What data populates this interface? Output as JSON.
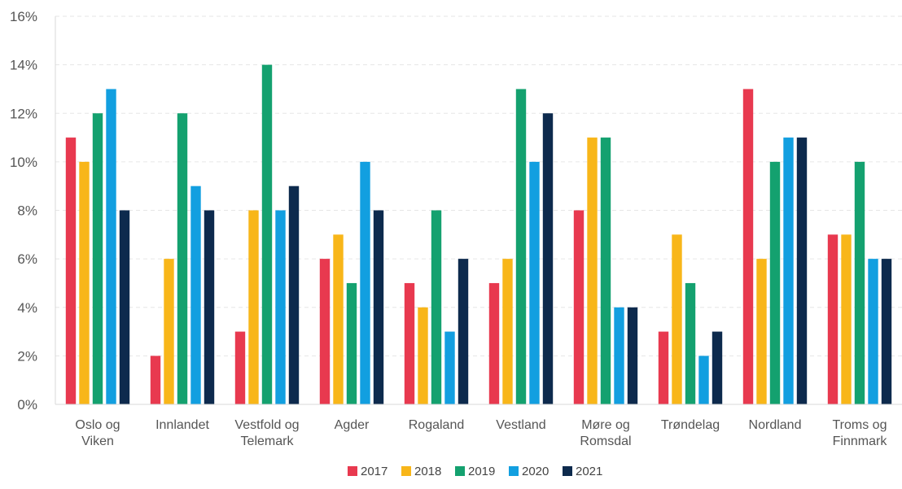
{
  "chart_data": {
    "type": "bar",
    "categories": [
      [
        "Oslo og",
        "Viken"
      ],
      [
        "Innlandet"
      ],
      [
        "Vestfold og",
        "Telemark"
      ],
      [
        "Agder"
      ],
      [
        "Rogaland"
      ],
      [
        "Vestland"
      ],
      [
        "Møre og",
        "Romsdal"
      ],
      [
        "Trøndelag"
      ],
      [
        "Nordland"
      ],
      [
        "Troms og",
        "Finnmark"
      ]
    ],
    "series": [
      {
        "name": "2017",
        "color": "#e8394f",
        "values": [
          11,
          2,
          3,
          6,
          5,
          5,
          8,
          3,
          13,
          7
        ]
      },
      {
        "name": "2018",
        "color": "#f8b619",
        "values": [
          10,
          6,
          8,
          7,
          4,
          6,
          11,
          7,
          6,
          7
        ]
      },
      {
        "name": "2019",
        "color": "#14a16f",
        "values": [
          12,
          12,
          14,
          5,
          8,
          13,
          11,
          5,
          10,
          10
        ]
      },
      {
        "name": "2020",
        "color": "#129fe0",
        "values": [
          13,
          9,
          8,
          10,
          3,
          10,
          4,
          2,
          11,
          6
        ]
      },
      {
        "name": "2021",
        "color": "#0d2a4d",
        "values": [
          8,
          8,
          9,
          8,
          6,
          12,
          4,
          3,
          11,
          6
        ]
      }
    ],
    "yticks": [
      "0%",
      "2%",
      "4%",
      "6%",
      "8%",
      "10%",
      "12%",
      "14%",
      "16%"
    ],
    "ylim": [
      0,
      16
    ],
    "grid": true,
    "legend_position": "bottom-center"
  }
}
